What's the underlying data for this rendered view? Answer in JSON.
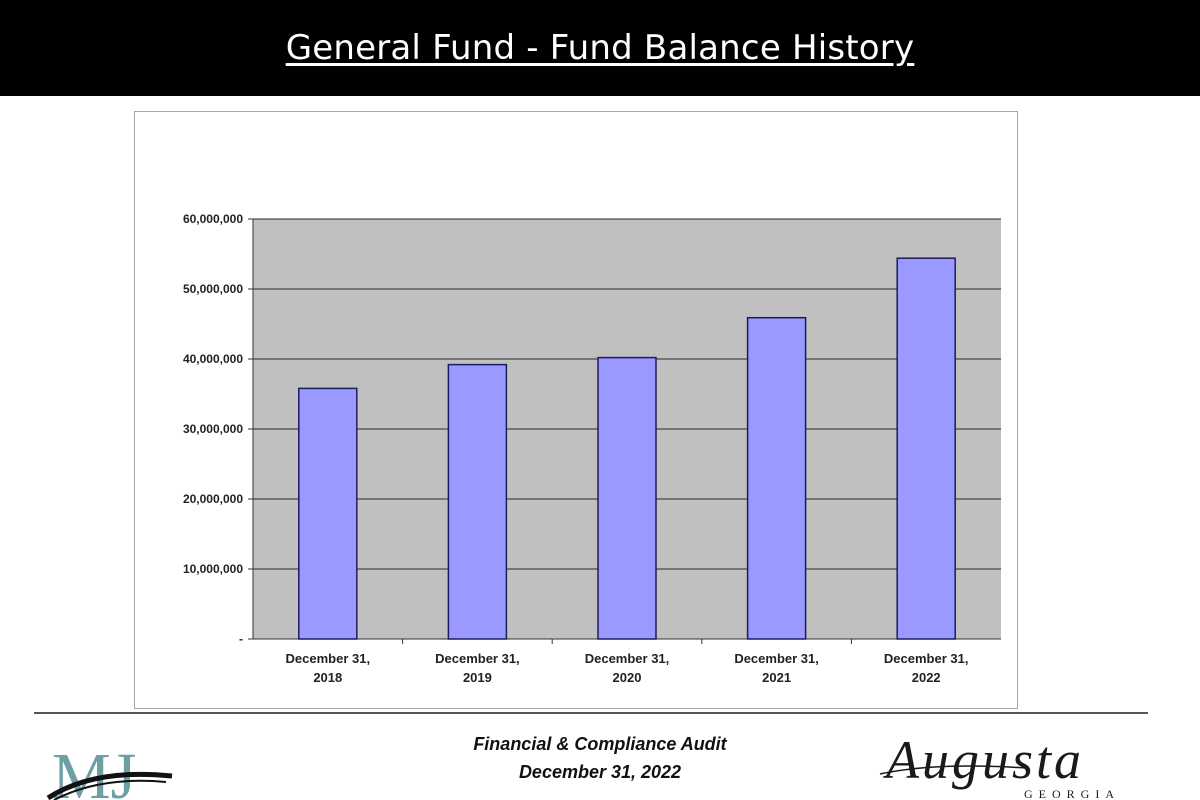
{
  "slide": {
    "title": "General Fund - Fund Balance History"
  },
  "chart_data": {
    "type": "bar",
    "categories": [
      [
        "December 31,",
        "2018"
      ],
      [
        "December 31,",
        "2019"
      ],
      [
        "December 31,",
        "2020"
      ],
      [
        "December 31,",
        "2021"
      ],
      [
        "December 31,",
        "2022"
      ]
    ],
    "values": [
      35800000,
      39200000,
      40200000,
      45900000,
      54400000
    ],
    "title": "",
    "xlabel": "",
    "ylabel": "",
    "ylim": [
      0,
      60000000
    ],
    "yticks": [
      0,
      10000000,
      20000000,
      30000000,
      40000000,
      50000000,
      60000000
    ],
    "ytick_labels": [
      "-",
      "10,000,000",
      "20,000,000",
      "30,000,000",
      "40,000,000",
      "50,000,000",
      "60,000,000"
    ],
    "grid": true,
    "legend": "none",
    "colors": {
      "bar_fill": "#9999ff",
      "bar_stroke": "#1c1c5c",
      "plot_background": "#c0c0c0",
      "gridline": "#2a2a2a"
    }
  },
  "footer": {
    "line1": "Financial & Compliance Audit",
    "line2": "December 31, 2022"
  },
  "logos": {
    "left_text": "MJ",
    "left_icon": "firm-logo-icon",
    "right_text": "Augusta",
    "right_subtext": "GEORGIA",
    "right_icon": "augusta-georgia-logo-icon"
  }
}
